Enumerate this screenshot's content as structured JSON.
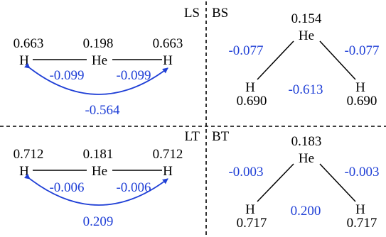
{
  "colors": {
    "black": "#000000",
    "blue": "#1f3fd6"
  },
  "panels": {
    "ls": {
      "tag": "LS",
      "spins": {
        "h_left": "0.663",
        "he": "0.198",
        "h_right": "0.663"
      },
      "atoms": {
        "h_left": "H",
        "he": "He",
        "h_right": "H"
      },
      "couplings": {
        "h_he_left": "-0.099",
        "he_h_right": "-0.099",
        "h_h": "-0.564"
      }
    },
    "bs": {
      "tag": "BS",
      "spins": {
        "he": "0.154",
        "h_left": "0.690",
        "h_right": "0.690"
      },
      "atoms": {
        "he": "He",
        "h_left": "H",
        "h_right": "H"
      },
      "couplings": {
        "he_h_left": "-0.077",
        "he_h_right": "-0.077",
        "h_h": "-0.613"
      }
    },
    "lt": {
      "tag": "LT",
      "spins": {
        "h_left": "0.712",
        "he": "0.181",
        "h_right": "0.712"
      },
      "atoms": {
        "h_left": "H",
        "he": "He",
        "h_right": "H"
      },
      "couplings": {
        "h_he_left": "-0.006",
        "he_h_right": "-0.006",
        "h_h": "0.209"
      }
    },
    "bt": {
      "tag": "BT",
      "spins": {
        "he": "0.183",
        "h_left": "0.717",
        "h_right": "0.717"
      },
      "atoms": {
        "he": "He",
        "h_left": "H",
        "h_right": "H"
      },
      "couplings": {
        "he_h_left": "-0.003",
        "he_h_right": "-0.003",
        "h_h": "0.200"
      }
    }
  }
}
